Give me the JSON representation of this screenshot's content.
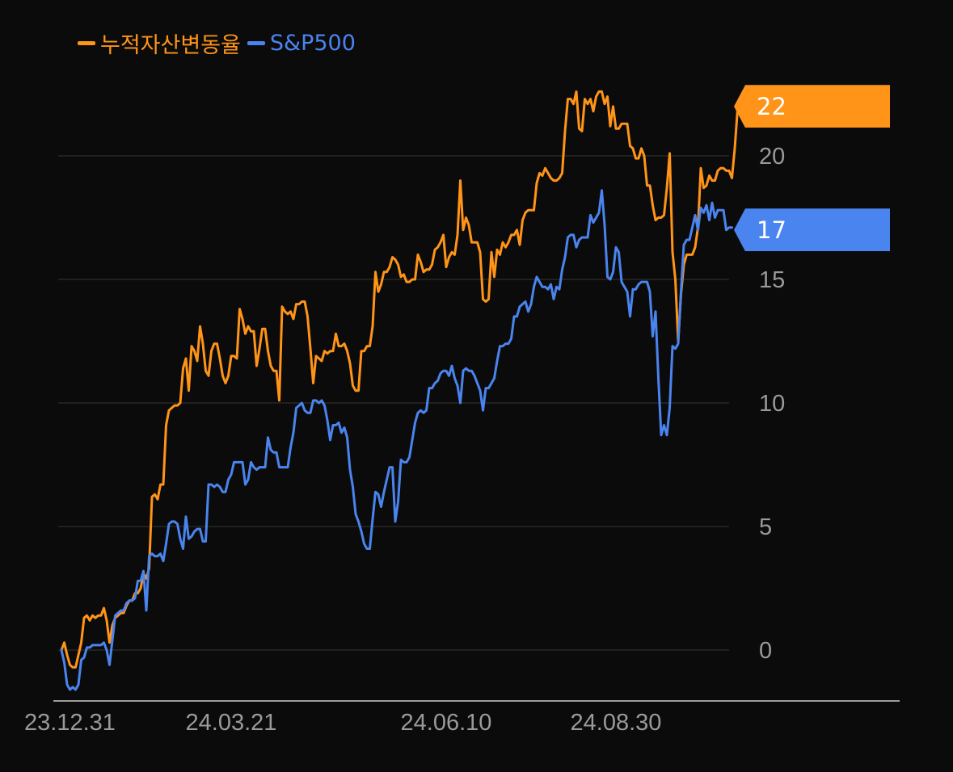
{
  "chart_data": {
    "type": "line",
    "legend_position": "top-left",
    "colors": {
      "background": "#0b0b0b",
      "grid": "#2e2e2e",
      "axis": "#cfcfcf",
      "tick": "#9a9a9a"
    },
    "yticks": [
      0,
      5,
      10,
      15,
      20
    ],
    "ylim": [
      -2,
      24
    ],
    "x_tick_labels": [
      {
        "label": "23.12.31",
        "index": 3
      },
      {
        "label": "24.03.21",
        "index": 60
      },
      {
        "label": "24.06.10",
        "index": 136
      },
      {
        "label": "24.08.30",
        "index": 196
      }
    ],
    "x_count": 231,
    "series": [
      {
        "name": "누적자산변동율",
        "color": "#ff9418",
        "last_label": "22",
        "values": [
          0,
          0.3,
          -0.2,
          -0.6,
          -0.7,
          -0.7,
          -0.2,
          0.3,
          1.3,
          1.4,
          1.2,
          1.4,
          1.3,
          1.4,
          1.4,
          1.7,
          1.2,
          0.3,
          1,
          1.3,
          1.4,
          1.5,
          1.5,
          1.8,
          2,
          2,
          2.3,
          2.3,
          2.5,
          3.1,
          2.9,
          3.3,
          6.2,
          6.3,
          6.1,
          6.7,
          6.7,
          9.1,
          9.7,
          9.8,
          9.9,
          9.9,
          10,
          11.4,
          11.8,
          10.5,
          12.3,
          12.1,
          11.7,
          13.1,
          12.4,
          11.3,
          11.1,
          12.1,
          12.4,
          12.4,
          11.8,
          11.1,
          10.8,
          11.1,
          11.9,
          11.9,
          11.8,
          13.8,
          13.4,
          12.8,
          13.1,
          12.9,
          12.9,
          11.5,
          12.2,
          13,
          13,
          12.1,
          11.5,
          11.3,
          11.3,
          10.1,
          13.9,
          13.7,
          13.6,
          13.7,
          13.4,
          14,
          14,
          14.1,
          14.1,
          13.5,
          12.2,
          10.8,
          11.9,
          11.8,
          11.7,
          12.1,
          12,
          12.1,
          12.1,
          12.8,
          12.3,
          12.3,
          12.4,
          12.1,
          11.6,
          10.7,
          10.5,
          10.5,
          12.1,
          12.1,
          12.3,
          12.3,
          13.1,
          15.3,
          14.5,
          14.8,
          15.3,
          15.3,
          15.5,
          15.9,
          15.8,
          15.6,
          15.1,
          15.2,
          14.9,
          14.9,
          15,
          15,
          16,
          15.7,
          15.3,
          15.4,
          15.4,
          15.6,
          16.2,
          16.3,
          16.5,
          16.8,
          15.5,
          15.9,
          16.1,
          16,
          16.8,
          19,
          17,
          17.5,
          17.2,
          16.5,
          16.5,
          16.5,
          16.1,
          14.2,
          14.1,
          14.2,
          16.1,
          15.1,
          16.2,
          16,
          16.5,
          16.3,
          16.5,
          16.8,
          16.8,
          17,
          16.4,
          17.4,
          17.7,
          17.8,
          17.8,
          17.8,
          18.9,
          19.3,
          19.2,
          19.5,
          19.3,
          19.1,
          19,
          19,
          19.1,
          19.3,
          21,
          22.3,
          22.3,
          22.1,
          22.6,
          21.1,
          21,
          22.3,
          22.1,
          22.3,
          21.8,
          22.4,
          22.6,
          22.6,
          22.1,
          22.4,
          21.2,
          22,
          21.1,
          21.1,
          21.3,
          21.3,
          21.3,
          20.4,
          20.3,
          19.9,
          19.9,
          20.3,
          20,
          18.8,
          18.8,
          18,
          17.4,
          17.5,
          17.5,
          17.6,
          18.7,
          20.1,
          16.1,
          15,
          12.5,
          14.4,
          15.6,
          16,
          16,
          16,
          16.3,
          17.1,
          19.5,
          18.7,
          18.8,
          19.2,
          19,
          19,
          19.4,
          19.5,
          19.5,
          19.4,
          19.4,
          19.1,
          20.3,
          21.9,
          21.9
        ],
        "annotations": []
      },
      {
        "name": "S&P500",
        "color": "#4a84ee",
        "last_label": "17",
        "values": [
          0,
          -0.5,
          -1.4,
          -1.6,
          -1.5,
          -1.6,
          -1.4,
          -0.4,
          -0.3,
          0.1,
          0.1,
          0.2,
          0.2,
          0.2,
          0.2,
          0.3,
          0,
          -0.6,
          0.4,
          1.4,
          1.5,
          1.6,
          1.6,
          1.9,
          2,
          2,
          2.1,
          2.8,
          2.8,
          3.2,
          1.6,
          3.8,
          3.9,
          3.8,
          3.8,
          3.9,
          3.6,
          4.3,
          5.1,
          5.2,
          5.2,
          5.1,
          4.5,
          4.1,
          5.4,
          4.5,
          4.6,
          4.8,
          4.9,
          4.9,
          4.4,
          4.4,
          6.7,
          6.7,
          6.6,
          6.7,
          6.6,
          6.4,
          6.4,
          6.9,
          7.1,
          7.6,
          7.6,
          7.6,
          7.6,
          6.7,
          6.9,
          7.6,
          7.4,
          7.3,
          7.4,
          7.4,
          7.4,
          8.6,
          8.1,
          8,
          8,
          7.4,
          7.4,
          7.4,
          7.4,
          8.2,
          8.8,
          9.8,
          9.9,
          10,
          9.7,
          9.6,
          9.6,
          10.1,
          10.1,
          10,
          10.1,
          9.9,
          9.3,
          8.5,
          9.1,
          9.1,
          9.2,
          8.8,
          9,
          8.6,
          7.3,
          6.6,
          5.5,
          5.2,
          4.8,
          4.3,
          4.1,
          4.1,
          5.3,
          6.4,
          6.3,
          5.8,
          6.4,
          6.9,
          7.4,
          7.4,
          5.2,
          6,
          7.7,
          7.6,
          7.6,
          7.8,
          8.5,
          9.2,
          9.6,
          9.7,
          9.6,
          9.7,
          10.6,
          10.6,
          10.8,
          10.9,
          11.2,
          11.3,
          11.3,
          11.1,
          11.5,
          11,
          10.7,
          10,
          11.3,
          11.4,
          11.3,
          11.3,
          11.1,
          10.8,
          10.5,
          9.7,
          10.6,
          10.6,
          10.8,
          11,
          11.7,
          12.3,
          12.3,
          12.4,
          12.4,
          12.6,
          13.5,
          13.5,
          13.9,
          14,
          14.1,
          13.7,
          14,
          14.7,
          15.1,
          14.9,
          14.7,
          14.7,
          14.6,
          14.8,
          14.2,
          14.7,
          14.6,
          15.4,
          15.9,
          16.7,
          16.8,
          16.8,
          16.3,
          16.6,
          16.7,
          16.7,
          16.7,
          17.6,
          17.3,
          17.5,
          17.7,
          18.6,
          17.2,
          15.1,
          15,
          15.3,
          16.3,
          16.1,
          14.9,
          14.7,
          14.5,
          13.5,
          14.6,
          14.6,
          14.8,
          14.9,
          14.9,
          14.9,
          14.5,
          12.7,
          13.7,
          11,
          8.7,
          9.1,
          8.7,
          9.8,
          12.3,
          12.2,
          12.4,
          14.5,
          16.4,
          16.6,
          16.6,
          17.1,
          17.6,
          17,
          17.9,
          17.7,
          18,
          17.4,
          18.1,
          17.5,
          17.8,
          17.8,
          17.8,
          17,
          17.1,
          17.1
        ],
        "annotations": []
      }
    ]
  }
}
